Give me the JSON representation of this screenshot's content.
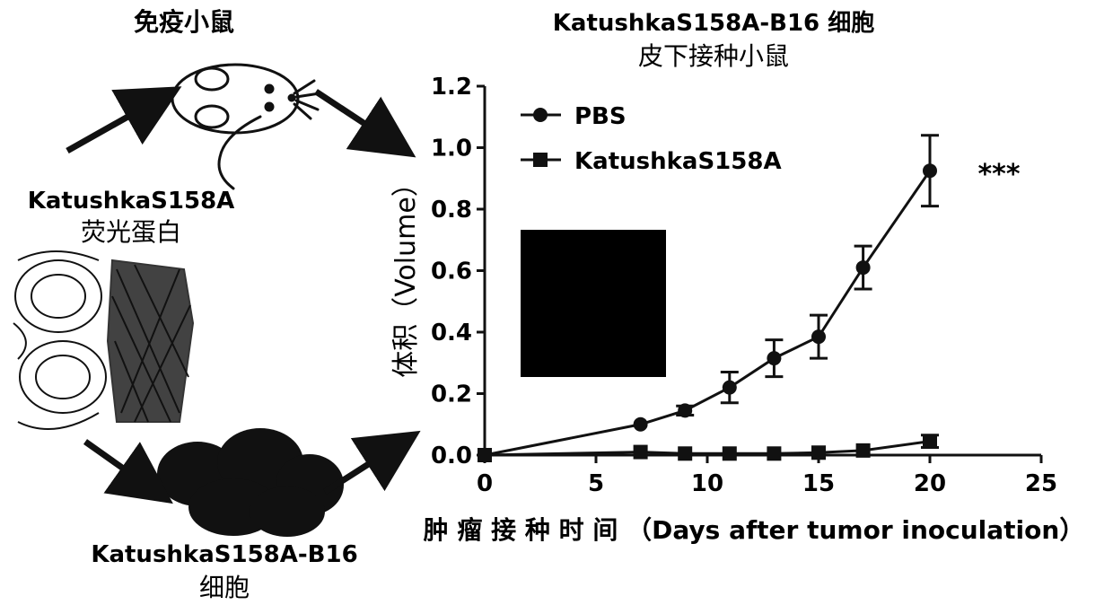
{
  "left": {
    "mouse_label": "免疫小鼠",
    "protein_label": {
      "line1": "KatushkaS158A",
      "line2": "荧光蛋白"
    },
    "cells_label": {
      "line1": "KatushkaS158A-B16",
      "line2": "细胞"
    }
  },
  "chart_data": {
    "type": "line",
    "title": {
      "line1": "KatushkaS158A-B16 细胞",
      "line2": "皮下接种小鼠"
    },
    "xlabel": "肿 瘤 接 种 时 间 （Days after tumor inoculation）",
    "ylabel": "体积（Volume）",
    "xlim": [
      0,
      25
    ],
    "ylim": [
      0,
      1.2
    ],
    "xticks": [
      0,
      5,
      10,
      15,
      20,
      25
    ],
    "yticks": [
      0.0,
      0.2,
      0.4,
      0.6,
      0.8,
      1.0,
      1.2
    ],
    "xtick_labels": [
      "0",
      "5",
      "10",
      "15",
      "20",
      "25"
    ],
    "ytick_labels": [
      "0.0",
      "0.2",
      "0.4",
      "0.6",
      "0.8",
      "1.0",
      "1.2"
    ],
    "legend_position": "top-left",
    "significance": "***",
    "series": [
      {
        "name": "PBS",
        "marker": "circle",
        "points": [
          {
            "x": 0,
            "y": 0.0,
            "err": 0.0
          },
          {
            "x": 7,
            "y": 0.1,
            "err": 0.0
          },
          {
            "x": 9,
            "y": 0.145,
            "err": 0.015
          },
          {
            "x": 11,
            "y": 0.22,
            "err": 0.05
          },
          {
            "x": 13,
            "y": 0.315,
            "err": 0.06
          },
          {
            "x": 15,
            "y": 0.385,
            "err": 0.07
          },
          {
            "x": 17,
            "y": 0.61,
            "err": 0.07
          },
          {
            "x": 20,
            "y": 0.925,
            "err": 0.115
          }
        ]
      },
      {
        "name": "KatushkaS158A",
        "marker": "square",
        "points": [
          {
            "x": 0,
            "y": 0.0,
            "err": 0.0
          },
          {
            "x": 7,
            "y": 0.01,
            "err": 0.0
          },
          {
            "x": 9,
            "y": 0.005,
            "err": 0.0
          },
          {
            "x": 11,
            "y": 0.005,
            "err": 0.0
          },
          {
            "x": 13,
            "y": 0.005,
            "err": 0.0
          },
          {
            "x": 15,
            "y": 0.008,
            "err": 0.0
          },
          {
            "x": 17,
            "y": 0.015,
            "err": 0.0
          },
          {
            "x": 20,
            "y": 0.045,
            "err": 0.02
          }
        ]
      }
    ]
  }
}
